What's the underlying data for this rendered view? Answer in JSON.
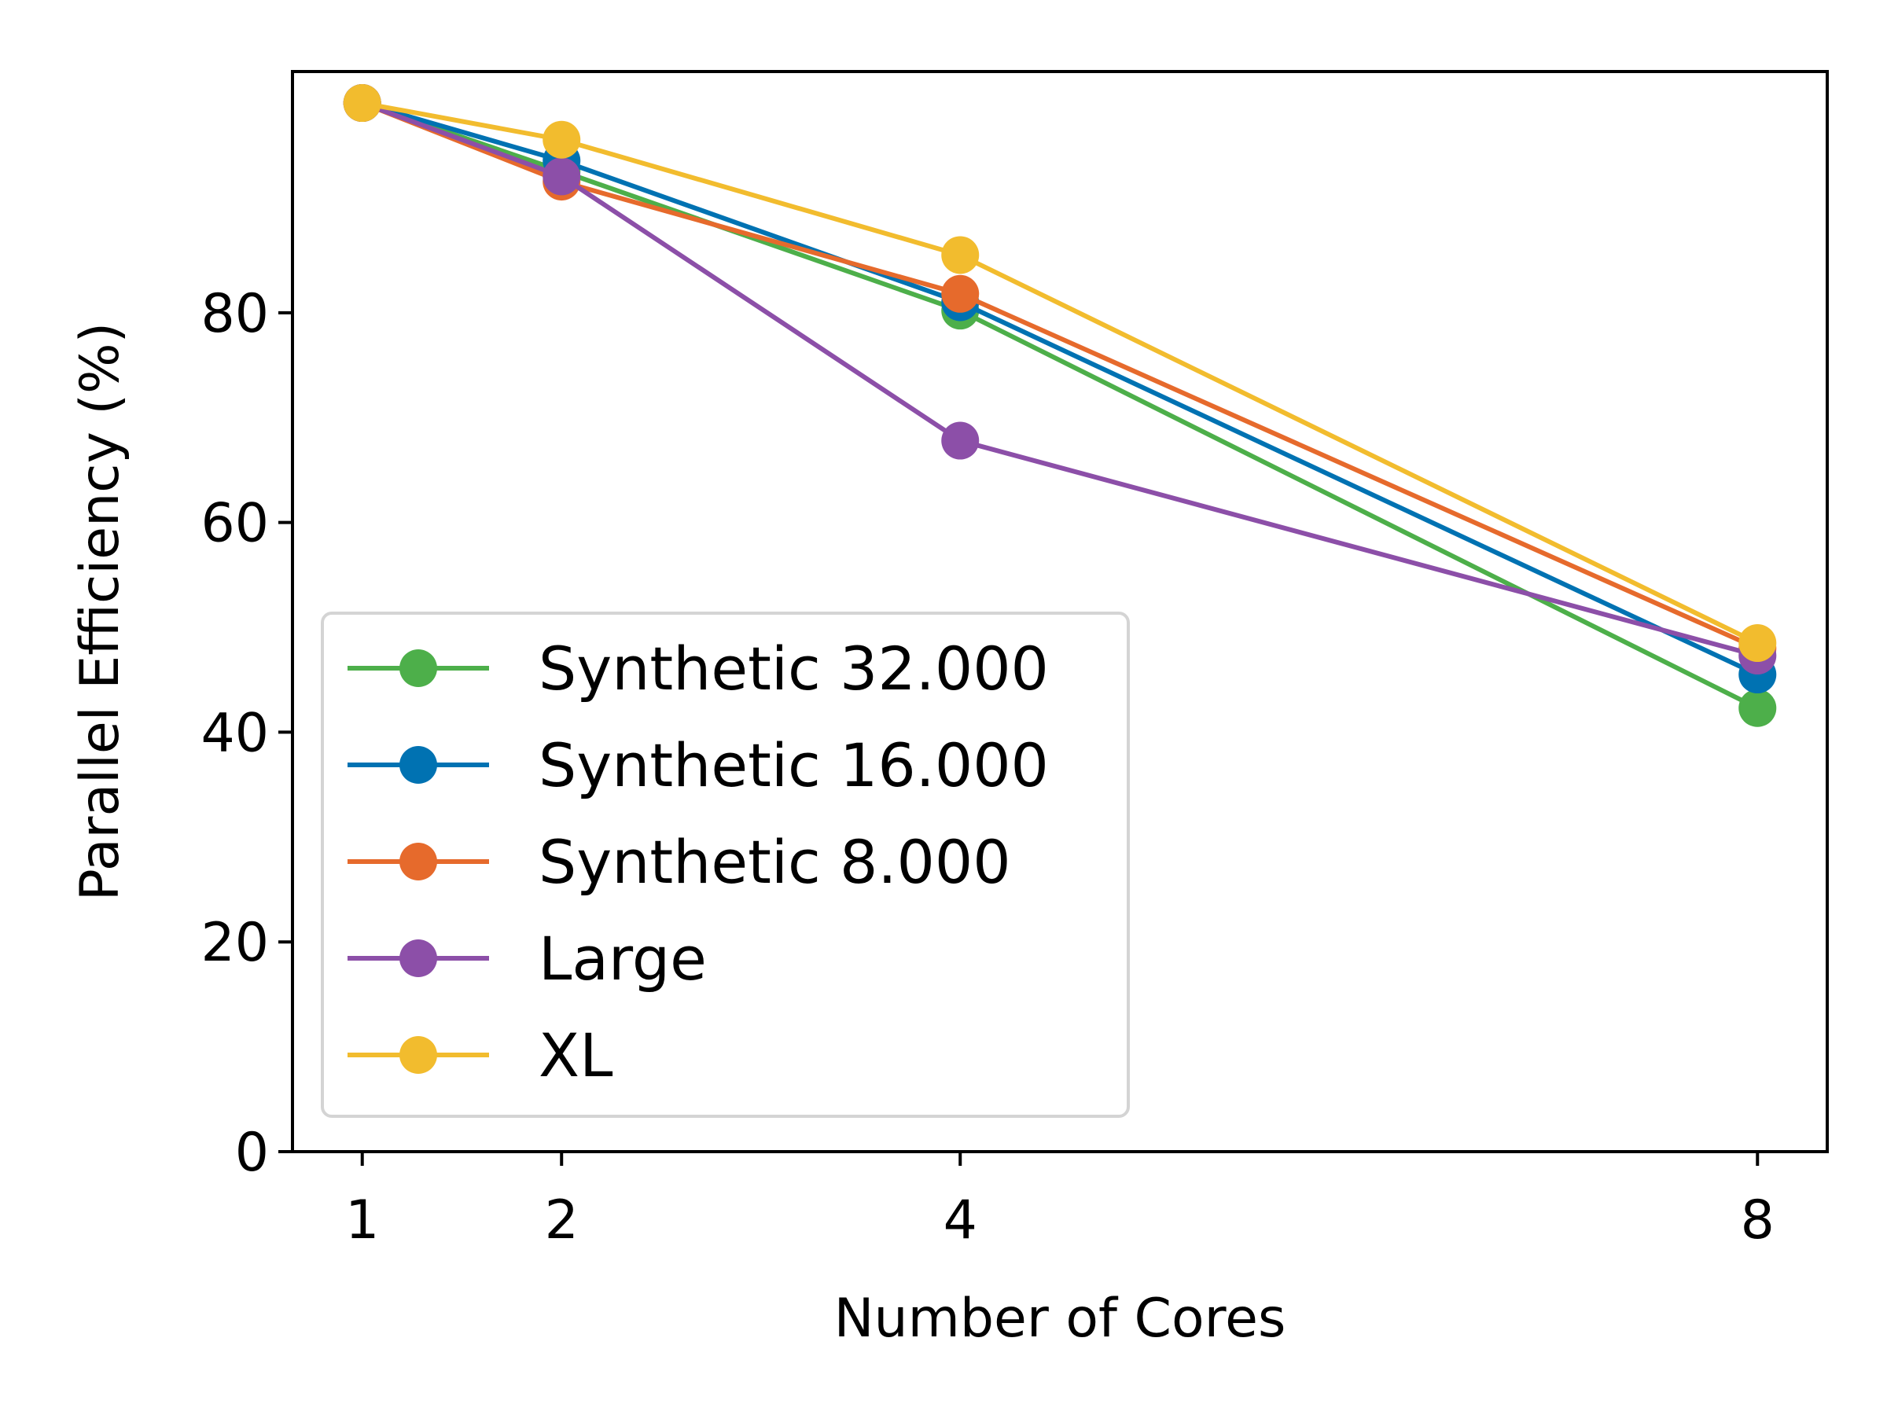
{
  "chart_data": {
    "type": "line",
    "title": "",
    "xlabel": "Number of Cores",
    "ylabel": "Parallel Efficiency (%)",
    "x": [
      1,
      2,
      4,
      8
    ],
    "xticks": [
      "1",
      "2",
      "4",
      "8"
    ],
    "yticks": [
      "0",
      "20",
      "40",
      "60",
      "80"
    ],
    "xlim": [
      0.65,
      8.35
    ],
    "ylim": [
      0,
      103
    ],
    "grid": false,
    "legend_position": "lower-left",
    "series": [
      {
        "name": "Synthetic 32.000",
        "color": "#4daf4a",
        "values": [
          100,
          93.5,
          80.2,
          42.3
        ]
      },
      {
        "name": "Synthetic 16.000",
        "color": "#0072b2",
        "values": [
          100,
          94.5,
          81.0,
          45.5
        ]
      },
      {
        "name": "Synthetic 8.000",
        "color": "#e66a2c",
        "values": [
          100,
          92.5,
          81.8,
          48.0
        ]
      },
      {
        "name": "Large",
        "color": "#8c4fa8",
        "values": [
          100,
          93.0,
          67.8,
          47.3
        ]
      },
      {
        "name": "XL",
        "color": "#f2bc2e",
        "values": [
          100,
          96.5,
          85.5,
          48.5
        ]
      }
    ]
  }
}
